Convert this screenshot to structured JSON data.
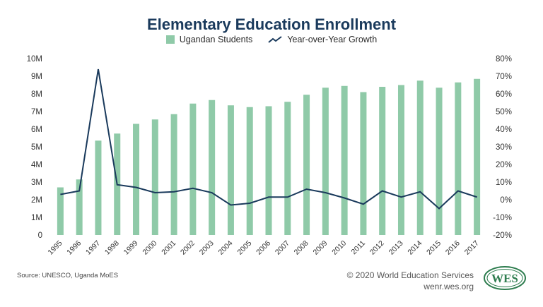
{
  "chart_data": {
    "type": "bar",
    "title": "Elementary Education Enrollment",
    "categories": [
      "1995",
      "1996",
      "1997",
      "1998",
      "1999",
      "2000",
      "2001",
      "2002",
      "2003",
      "2004",
      "2005",
      "2006",
      "2007",
      "2008",
      "2009",
      "2010",
      "2011",
      "2012",
      "2013",
      "2014",
      "2015",
      "2016",
      "2017"
    ],
    "series": [
      {
        "name": "Ugandan Students",
        "type": "bar",
        "axis": "left",
        "color": "#8fcaa8",
        "values": [
          2.7,
          3.15,
          5.35,
          5.75,
          6.3,
          6.55,
          6.85,
          7.45,
          7.65,
          7.35,
          7.25,
          7.3,
          7.55,
          7.95,
          8.35,
          8.45,
          8.1,
          8.4,
          8.5,
          8.75,
          8.35,
          8.65,
          8.85
        ]
      },
      {
        "name": "Year-over-Year Growth",
        "type": "line",
        "axis": "right",
        "color": "#1a3a5c",
        "values": [
          3,
          5,
          74,
          8.5,
          7,
          4,
          4.5,
          6.5,
          4,
          -3,
          -2,
          1.5,
          1.5,
          6,
          4,
          1,
          -2.5,
          5,
          1.5,
          4.5,
          -5,
          5,
          1.5
        ]
      }
    ],
    "left_axis": {
      "ylim": [
        0,
        10
      ],
      "ticks": [
        "0",
        "1M",
        "2M",
        "3M",
        "4M",
        "5M",
        "6M",
        "7M",
        "8M",
        "9M",
        "10M"
      ]
    },
    "right_axis": {
      "ylim": [
        -20,
        80
      ],
      "ticks": [
        "-20%",
        "-10%",
        "0%",
        "10%",
        "20%",
        "30%",
        "40%",
        "50%",
        "60%",
        "70%",
        "80%"
      ]
    },
    "grid": false,
    "legend_position": "top-center"
  },
  "footer": {
    "source": "Source: UNESCO, Uganda MoES",
    "copyright": "© 2020 World Education Services",
    "website": "wenr.wes.org",
    "logo_text": "WES"
  }
}
